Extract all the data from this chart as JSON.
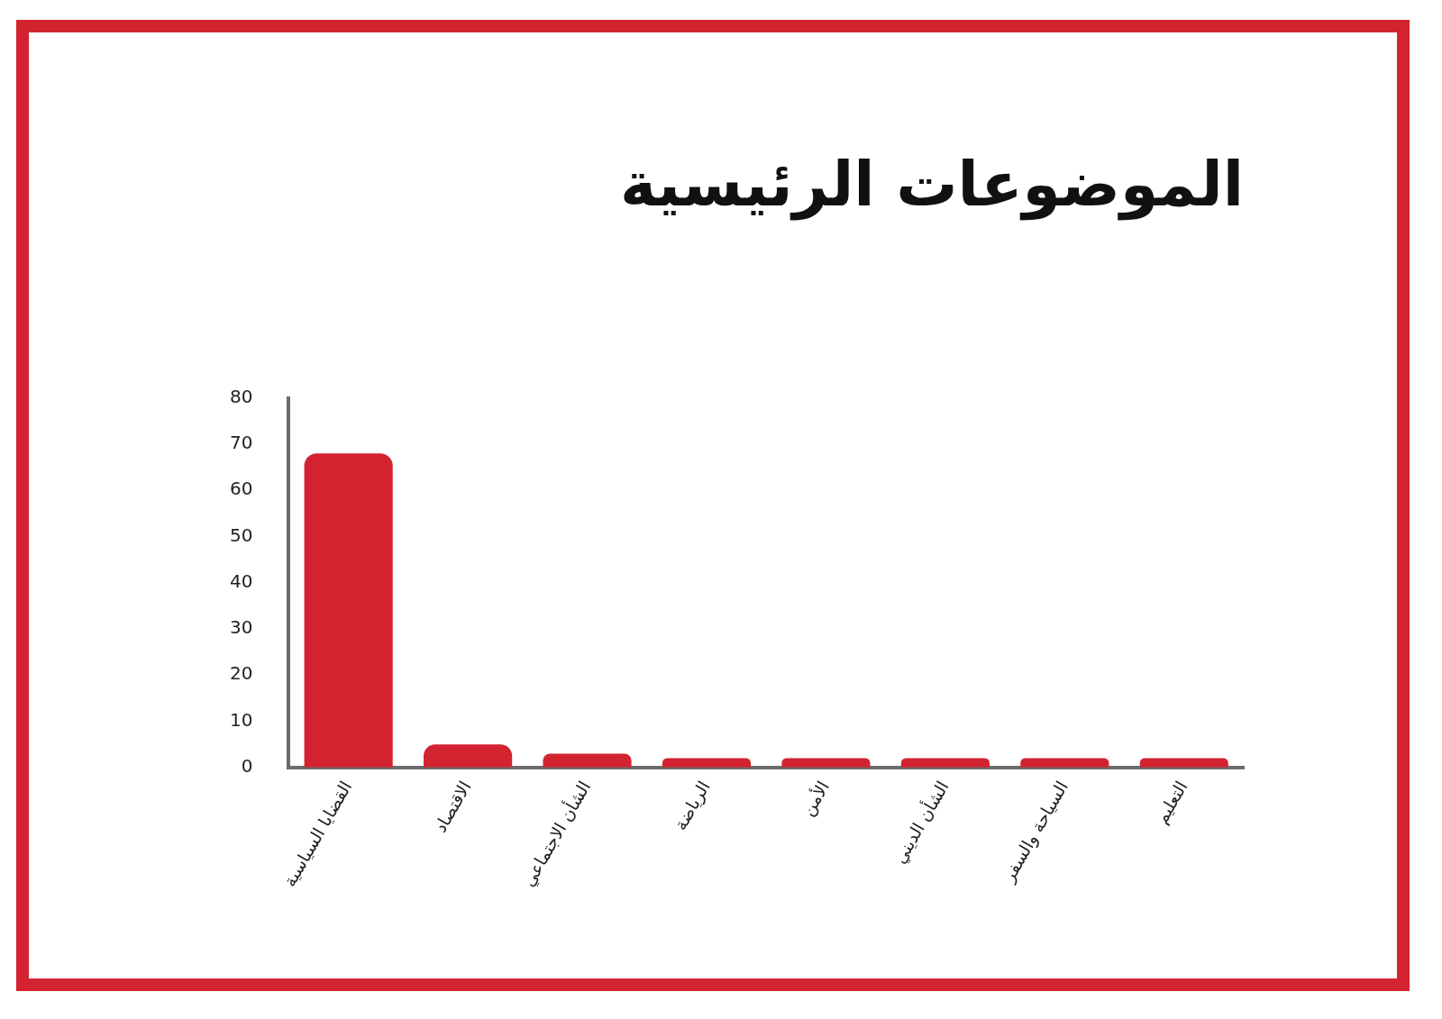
{
  "chart_data": {
    "type": "bar",
    "title": "الموضوعات الرئيسية",
    "categories": [
      "القضايا السياسية",
      "الاقتصاد",
      "الشأن الاجتماعي",
      "الرياضة",
      "الأمن",
      "الشأن الديني",
      "السياحة والسفر",
      "التعليم"
    ],
    "values": [
      68,
      5,
      3,
      2,
      2,
      2,
      2,
      2
    ],
    "color": "#d42330",
    "ylim": [
      0,
      80
    ],
    "yticks": [
      0,
      10,
      20,
      30,
      40,
      50,
      60,
      70,
      80
    ],
    "grid": false,
    "legend": false
  }
}
